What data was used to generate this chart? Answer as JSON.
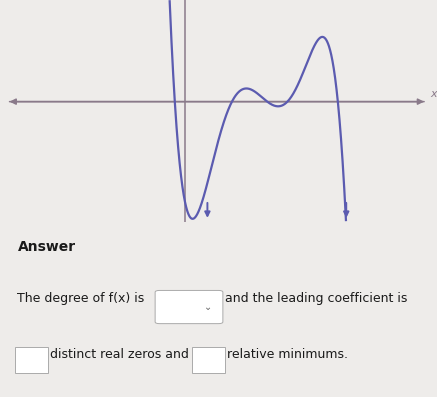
{
  "background_color": "#eeecea",
  "answer_bg_color": "#dddbd8",
  "curve_color": "#5b5bb0",
  "axis_color": "#8a7a8a",
  "text_color": "#1a1a1a",
  "answer_label": "Answer",
  "line1_part1": "The degree of f(x) is",
  "line1_part2": "and the leading coefficient is",
  "line2_part1": "distinct real zeros and",
  "line2_part2": "relative minimums.",
  "x_label": "x",
  "fig_width": 4.37,
  "fig_height": 3.97,
  "xlim": [
    -5.5,
    7.5
  ],
  "ylim": [
    -3.8,
    3.2
  ],
  "graph_top": 0.44,
  "graph_height": 0.56
}
